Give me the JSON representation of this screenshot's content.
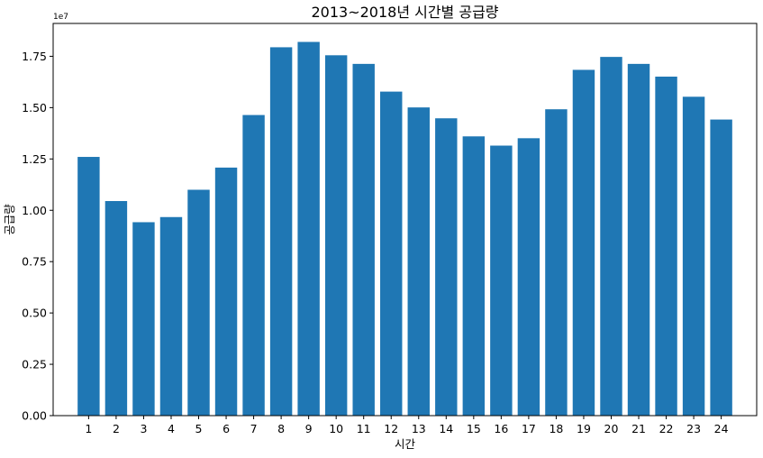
{
  "chart_data": {
    "type": "bar",
    "title": "2013~2018년 시간별 공급량",
    "xlabel": "시간",
    "ylabel": "공급량",
    "y_exponent_label": "1e7",
    "categories": [
      "1",
      "2",
      "3",
      "4",
      "5",
      "6",
      "7",
      "8",
      "9",
      "10",
      "11",
      "12",
      "13",
      "14",
      "15",
      "16",
      "17",
      "18",
      "19",
      "20",
      "21",
      "22",
      "23",
      "24"
    ],
    "values": [
      12600000,
      10450000,
      9420000,
      9670000,
      11000000,
      12080000,
      14640000,
      17940000,
      18200000,
      17550000,
      17130000,
      15780000,
      15010000,
      14480000,
      13600000,
      13150000,
      13510000,
      14920000,
      16840000,
      17470000,
      17130000,
      16510000,
      15530000,
      14420000
    ],
    "ylim": [
      0,
      19100000
    ],
    "yticks": [
      0,
      2500000,
      5000000,
      7500000,
      10000000,
      12500000,
      15000000,
      17500000
    ],
    "ytick_labels": [
      "0.00",
      "0.25",
      "0.50",
      "0.75",
      "1.00",
      "1.25",
      "1.50",
      "1.75"
    ],
    "bar_color": "#1f77b4",
    "grid": false
  }
}
